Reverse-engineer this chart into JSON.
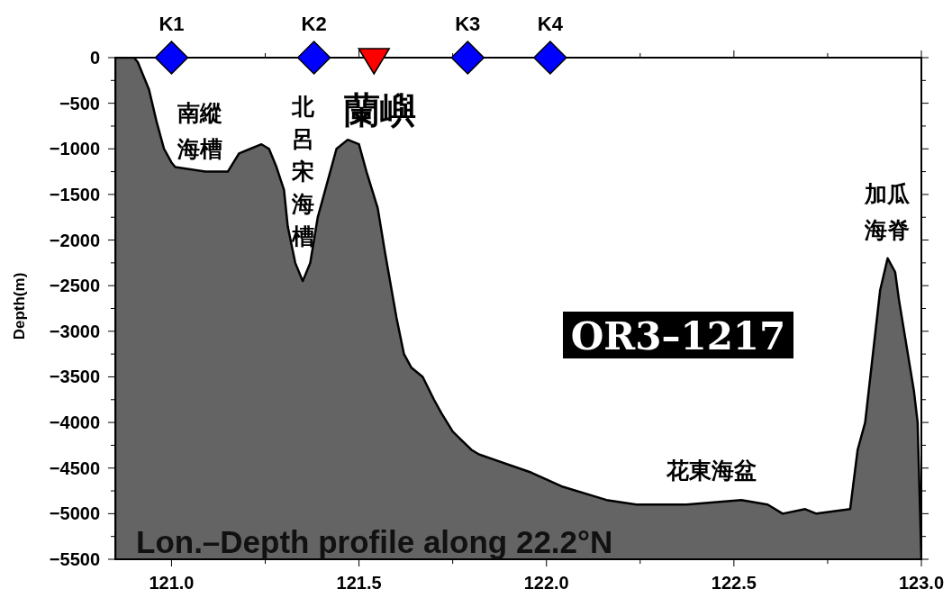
{
  "chart_data": {
    "type": "area",
    "title": "Lon.–Depth profile along 22.2°N",
    "ylabel": "Depth(m)",
    "xlim": [
      120.85,
      123.0
    ],
    "ylim": [
      -5500,
      0
    ],
    "xticks": [
      {
        "value": 121,
        "label": "121.0"
      },
      {
        "value": 121.25,
        "label": null
      },
      {
        "value": 121.5,
        "label": "121.5"
      },
      {
        "value": 121.75,
        "label": null
      },
      {
        "value": 122,
        "label": "122.0"
      },
      {
        "value": 122.25,
        "label": null
      },
      {
        "value": 122.5,
        "label": "122.5"
      },
      {
        "value": 122.75,
        "label": null
      },
      {
        "value": 123,
        "label": "123.0"
      }
    ],
    "yticks": [
      0,
      {
        "value": -250,
        "label": null
      },
      -500,
      {
        "value": -750,
        "label": null
      },
      -1000,
      {
        "value": -1250,
        "label": null
      },
      -1500,
      {
        "value": -1750,
        "label": null
      },
      -2000,
      {
        "value": -2250,
        "label": null
      },
      -2500,
      {
        "value": -2750,
        "label": null
      },
      -3000,
      {
        "value": -3250,
        "label": null
      },
      -3500,
      {
        "value": -3750,
        "label": null
      },
      -4000,
      {
        "value": -4250,
        "label": null
      },
      -4500,
      {
        "value": -4750,
        "label": null
      },
      -5000,
      {
        "value": -5250,
        "label": null
      },
      -5500
    ],
    "series": [
      {
        "color": "#646464",
        "x": [
          120.85,
          120.85,
          120.9,
          120.91,
          120.94,
          120.96,
          120.98,
          121.0,
          121.01,
          121.09,
          121.15,
          121.18,
          121.21,
          121.24,
          121.26,
          121.28,
          121.3,
          121.31,
          121.33,
          121.35,
          121.37,
          121.39,
          121.42,
          121.44,
          121.47,
          121.5,
          121.52,
          121.55,
          121.57,
          121.6,
          121.62,
          121.64,
          121.67,
          121.7,
          121.72,
          121.75,
          121.8,
          121.82,
          121.96,
          122.04,
          122.16,
          122.24,
          122.37,
          122.52,
          122.59,
          122.63,
          122.69,
          122.72,
          122.81,
          122.83,
          122.85,
          122.89,
          122.91,
          122.93,
          122.94,
          122.98,
          122.99,
          123.0
        ],
        "values": [
          -5500,
          0,
          0,
          -50,
          -350,
          -700,
          -1000,
          -1150,
          -1200,
          -1250,
          -1250,
          -1050,
          -1000,
          -950,
          -1000,
          -1200,
          -1450,
          -1850,
          -2250,
          -2450,
          -2250,
          -1750,
          -1300,
          -1000,
          -900,
          -950,
          -1250,
          -1650,
          -2150,
          -2850,
          -3250,
          -3400,
          -3500,
          -3750,
          -3900,
          -4100,
          -4300,
          -4350,
          -4550,
          -4700,
          -4850,
          -4900,
          -4900,
          -4850,
          -4900,
          -5000,
          -4950,
          -5000,
          -4950,
          -4300,
          -4000,
          -2550,
          -2200,
          -2350,
          -2650,
          -3650,
          -4000,
          -5500
        ]
      },
      {
        "type": "scatter",
        "marker": "diamond",
        "color": "#0000ff",
        "x": [
          121.0,
          121.38,
          121.79,
          122.01
        ],
        "values": [
          0,
          0,
          0,
          0
        ],
        "value_labels": [
          "K1",
          "K2",
          "K3",
          "K4"
        ]
      },
      {
        "type": "scatter",
        "marker": "triangle",
        "color": "#ff0000",
        "x": [
          121.54
        ],
        "values": [
          0
        ]
      }
    ],
    "annotations": [
      "南縱海槽",
      "北呂宋海槽",
      "蘭嶼",
      "加瓜海脊",
      "花東海盆",
      "OR3–1217"
    ]
  }
}
